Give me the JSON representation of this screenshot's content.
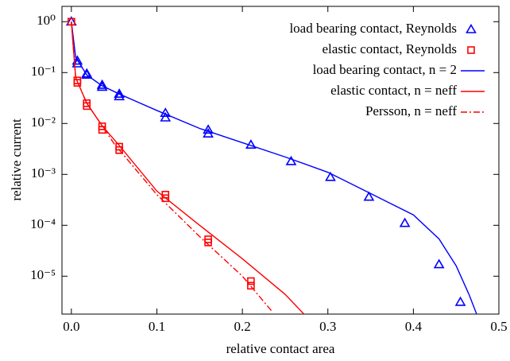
{
  "chart_data": {
    "type": "scatter-line",
    "xlabel": "relative contact area",
    "ylabel": "relative current",
    "xlim": [
      -0.011,
      0.5
    ],
    "ylim": [
      1.8e-06,
      2
    ],
    "yscale": "log",
    "xticks": [
      {
        "value": 0,
        "label": "0.0"
      },
      0.1,
      0.2,
      0.3,
      0.4,
      0.5
    ],
    "yticks": [
      {
        "value": 1,
        "label": "10⁰"
      },
      {
        "value": 0.1,
        "label": "10⁻¹"
      },
      {
        "value": 0.01,
        "label": "10⁻²"
      },
      {
        "value": 0.001,
        "label": "10⁻³"
      },
      {
        "value": 0.0001,
        "label": "10⁻⁴"
      },
      {
        "value": 1e-05,
        "label": "10⁻⁵"
      }
    ],
    "legend": "upper right",
    "series": [
      {
        "name": "load bearing contact, Reynolds",
        "color": "#0000ff",
        "kind": "marker",
        "marker": "triangle",
        "x": [
          0,
          0.007,
          0.007,
          0.018,
          0.018,
          0.036,
          0.036,
          0.056,
          0.056,
          0.11,
          0.11,
          0.16,
          0.16,
          0.21,
          0.257,
          0.303,
          0.348,
          0.39,
          0.43,
          0.455
        ],
        "values": [
          1,
          0.17,
          0.15,
          0.095,
          0.09,
          0.057,
          0.052,
          0.038,
          0.034,
          0.016,
          0.013,
          0.0075,
          0.0063,
          0.0038,
          0.0018,
          0.00088,
          0.00036,
          0.00011,
          1.7e-05,
          3.1e-06
        ]
      },
      {
        "name": "elastic contact, Reynolds",
        "color": "#ff0000",
        "kind": "marker",
        "marker": "square",
        "x": [
          0,
          0.007,
          0.007,
          0.018,
          0.018,
          0.036,
          0.036,
          0.056,
          0.056,
          0.11,
          0.11,
          0.16,
          0.16,
          0.21,
          0.21
        ],
        "values": [
          1,
          0.07,
          0.063,
          0.025,
          0.022,
          0.0088,
          0.0075,
          0.0035,
          0.003,
          0.0004,
          0.00034,
          5.3e-05,
          4.6e-05,
          8e-06,
          6.5e-06
        ]
      },
      {
        "name": "load bearing contact, n = 2",
        "color": "#0000ff",
        "kind": "line",
        "line_style": "solid",
        "x": [
          0,
          0.005,
          0.018,
          0.036,
          0.056,
          0.1,
          0.15,
          0.2,
          0.25,
          0.3,
          0.35,
          0.4,
          0.43,
          0.45,
          0.465,
          0.474
        ],
        "values": [
          1,
          0.2,
          0.09,
          0.055,
          0.038,
          0.018,
          0.008,
          0.0042,
          0.0022,
          0.0011,
          0.00042,
          0.00016,
          5.4e-05,
          1.6e-05,
          4.4e-06,
          1.8e-06
        ]
      },
      {
        "name": "elastic contact, n = neff",
        "color": "#ff0000",
        "kind": "line",
        "line_style": "solid",
        "x": [
          0,
          0.005,
          0.018,
          0.036,
          0.056,
          0.1,
          0.15,
          0.2,
          0.25,
          0.272
        ],
        "values": [
          1,
          0.08,
          0.025,
          0.009,
          0.0037,
          0.00047,
          0.0001,
          2.2e-05,
          4.4e-06,
          1.8e-06
        ]
      },
      {
        "name": "Persson, n = neff",
        "color": "#ff0000",
        "kind": "line",
        "line_style": "dashdot",
        "x": [
          0,
          0.005,
          0.018,
          0.036,
          0.05,
          0.1,
          0.15,
          0.2,
          0.235
        ],
        "values": [
          1,
          0.08,
          0.025,
          0.009,
          0.004,
          0.0004,
          6e-05,
          1e-05,
          2e-06
        ]
      }
    ]
  }
}
